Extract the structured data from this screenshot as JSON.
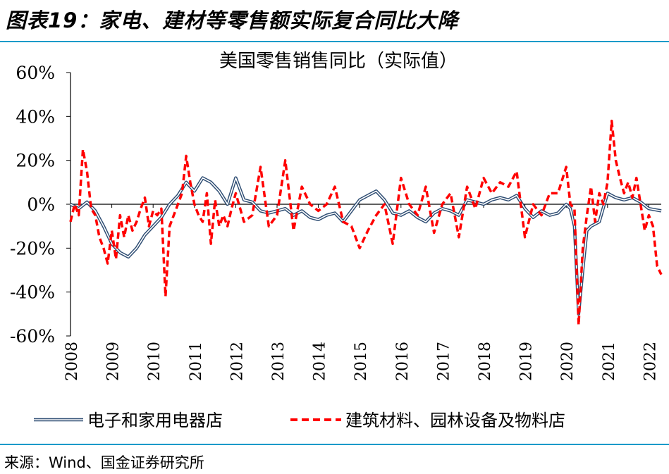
{
  "figure_title": "图表19：家电、建材等零售额实际复合同比大降",
  "source": "来源：Wind、国金证券研究所",
  "colors": {
    "accent_rule": "#1a9ac9",
    "series_electronics": "#2e4d73",
    "series_building": "#ff0000"
  },
  "chart_data": {
    "type": "line",
    "title": "美国零售销售同比（实际值）",
    "xlabel": "",
    "ylabel": "",
    "ylim": [
      -0.6,
      0.6
    ],
    "y_ticks": [
      "60%",
      "40%",
      "20%",
      "0%",
      "-20%",
      "-40%",
      "-60%"
    ],
    "y_tick_values": [
      0.6,
      0.4,
      0.2,
      0.0,
      -0.2,
      -0.4,
      -0.6
    ],
    "x_ticks": [
      "2008",
      "2009",
      "2010",
      "2011",
      "2012",
      "2013",
      "2014",
      "2015",
      "2016",
      "2017",
      "2018",
      "2019",
      "2020",
      "2021",
      "2022"
    ],
    "x_range": [
      2008.0,
      2022.3
    ],
    "legend_position": "bottom",
    "series": [
      {
        "name": "电子和家用电器店",
        "style": "solid-double",
        "x": [
          2008.0,
          2008.2,
          2008.4,
          2008.6,
          2008.8,
          2009.0,
          2009.2,
          2009.4,
          2009.6,
          2009.8,
          2010.0,
          2010.2,
          2010.4,
          2010.6,
          2010.8,
          2011.0,
          2011.2,
          2011.4,
          2011.6,
          2011.8,
          2012.0,
          2012.2,
          2012.4,
          2012.6,
          2012.8,
          2013.0,
          2013.2,
          2013.4,
          2013.6,
          2013.8,
          2014.0,
          2014.2,
          2014.4,
          2014.6,
          2014.8,
          2015.0,
          2015.2,
          2015.4,
          2015.6,
          2015.8,
          2016.0,
          2016.2,
          2016.4,
          2016.6,
          2016.8,
          2017.0,
          2017.2,
          2017.4,
          2017.6,
          2017.8,
          2018.0,
          2018.2,
          2018.4,
          2018.6,
          2018.8,
          2019.0,
          2019.2,
          2019.4,
          2019.6,
          2019.8,
          2020.0,
          2020.1,
          2020.2,
          2020.3,
          2020.4,
          2020.5,
          2020.6,
          2020.8,
          2021.0,
          2021.2,
          2021.4,
          2021.6,
          2021.8,
          2022.0,
          2022.3
        ],
        "values": [
          0.0,
          -0.02,
          0.01,
          -0.03,
          -0.1,
          -0.18,
          -0.22,
          -0.24,
          -0.2,
          -0.14,
          -0.1,
          -0.06,
          0.0,
          0.04,
          0.1,
          0.06,
          0.12,
          0.1,
          0.06,
          0.0,
          0.12,
          0.02,
          0.01,
          -0.03,
          -0.04,
          -0.03,
          -0.02,
          -0.05,
          -0.03,
          -0.06,
          -0.07,
          -0.05,
          -0.04,
          -0.08,
          -0.03,
          0.02,
          0.04,
          0.06,
          0.02,
          -0.04,
          -0.05,
          -0.03,
          -0.06,
          -0.08,
          -0.04,
          -0.02,
          -0.03,
          -0.05,
          0.02,
          0.01,
          0.0,
          0.02,
          0.03,
          0.02,
          0.04,
          -0.02,
          -0.06,
          -0.03,
          -0.05,
          -0.04,
          0.0,
          -0.02,
          -0.1,
          -0.5,
          -0.3,
          -0.12,
          -0.1,
          -0.08,
          0.05,
          0.03,
          0.02,
          0.03,
          0.01,
          -0.02,
          -0.03
        ]
      },
      {
        "name": "建筑材料、园林设备及物料店",
        "style": "dashed",
        "x": [
          2008.0,
          2008.1,
          2008.2,
          2008.3,
          2008.4,
          2008.5,
          2008.6,
          2008.7,
          2008.8,
          2008.9,
          2009.0,
          2009.1,
          2009.2,
          2009.3,
          2009.4,
          2009.5,
          2009.6,
          2009.7,
          2009.8,
          2009.9,
          2010.0,
          2010.1,
          2010.2,
          2010.3,
          2010.4,
          2010.5,
          2010.6,
          2010.7,
          2010.8,
          2010.9,
          2011.0,
          2011.1,
          2011.2,
          2011.3,
          2011.4,
          2011.5,
          2011.6,
          2011.7,
          2011.8,
          2011.9,
          2012.0,
          2012.2,
          2012.4,
          2012.6,
          2012.8,
          2013.0,
          2013.2,
          2013.4,
          2013.6,
          2013.8,
          2014.0,
          2014.2,
          2014.4,
          2014.6,
          2014.8,
          2015.0,
          2015.2,
          2015.4,
          2015.6,
          2015.8,
          2016.0,
          2016.2,
          2016.4,
          2016.6,
          2016.8,
          2017.0,
          2017.2,
          2017.4,
          2017.6,
          2017.8,
          2018.0,
          2018.2,
          2018.4,
          2018.6,
          2018.8,
          2019.0,
          2019.2,
          2019.4,
          2019.6,
          2019.8,
          2020.0,
          2020.1,
          2020.2,
          2020.3,
          2020.4,
          2020.5,
          2020.6,
          2020.7,
          2020.8,
          2020.9,
          2021.0,
          2021.1,
          2021.2,
          2021.3,
          2021.4,
          2021.5,
          2021.6,
          2021.7,
          2021.8,
          2021.9,
          2022.0,
          2022.1,
          2022.2,
          2022.3
        ],
        "values": [
          -0.08,
          0.0,
          -0.05,
          0.25,
          0.15,
          -0.02,
          -0.05,
          -0.15,
          -0.2,
          -0.27,
          -0.12,
          -0.25,
          -0.05,
          -0.15,
          -0.05,
          -0.12,
          -0.08,
          -0.02,
          0.03,
          -0.1,
          -0.03,
          -0.05,
          -0.02,
          -0.42,
          -0.1,
          -0.05,
          0.0,
          0.05,
          0.22,
          0.1,
          0.0,
          -0.05,
          -0.08,
          0.05,
          -0.18,
          0.02,
          -0.1,
          -0.05,
          -0.1,
          -0.02,
          0.05,
          -0.08,
          -0.05,
          0.17,
          -0.1,
          -0.05,
          0.2,
          -0.12,
          0.08,
          0.0,
          -0.03,
          0.0,
          0.08,
          -0.08,
          -0.1,
          -0.2,
          -0.12,
          -0.05,
          0.0,
          -0.18,
          0.12,
          0.0,
          -0.05,
          0.08,
          -0.13,
          0.0,
          0.05,
          -0.15,
          0.08,
          -0.02,
          0.12,
          0.05,
          0.1,
          0.08,
          0.15,
          -0.15,
          0.0,
          -0.05,
          0.05,
          0.05,
          0.17,
          0.0,
          -0.02,
          -0.55,
          -0.2,
          -0.05,
          0.08,
          -0.08,
          0.05,
          0.0,
          0.1,
          0.38,
          0.2,
          0.12,
          0.05,
          0.1,
          0.03,
          0.12,
          0.0,
          -0.12,
          -0.05,
          -0.1,
          -0.28,
          -0.32
        ]
      }
    ]
  }
}
